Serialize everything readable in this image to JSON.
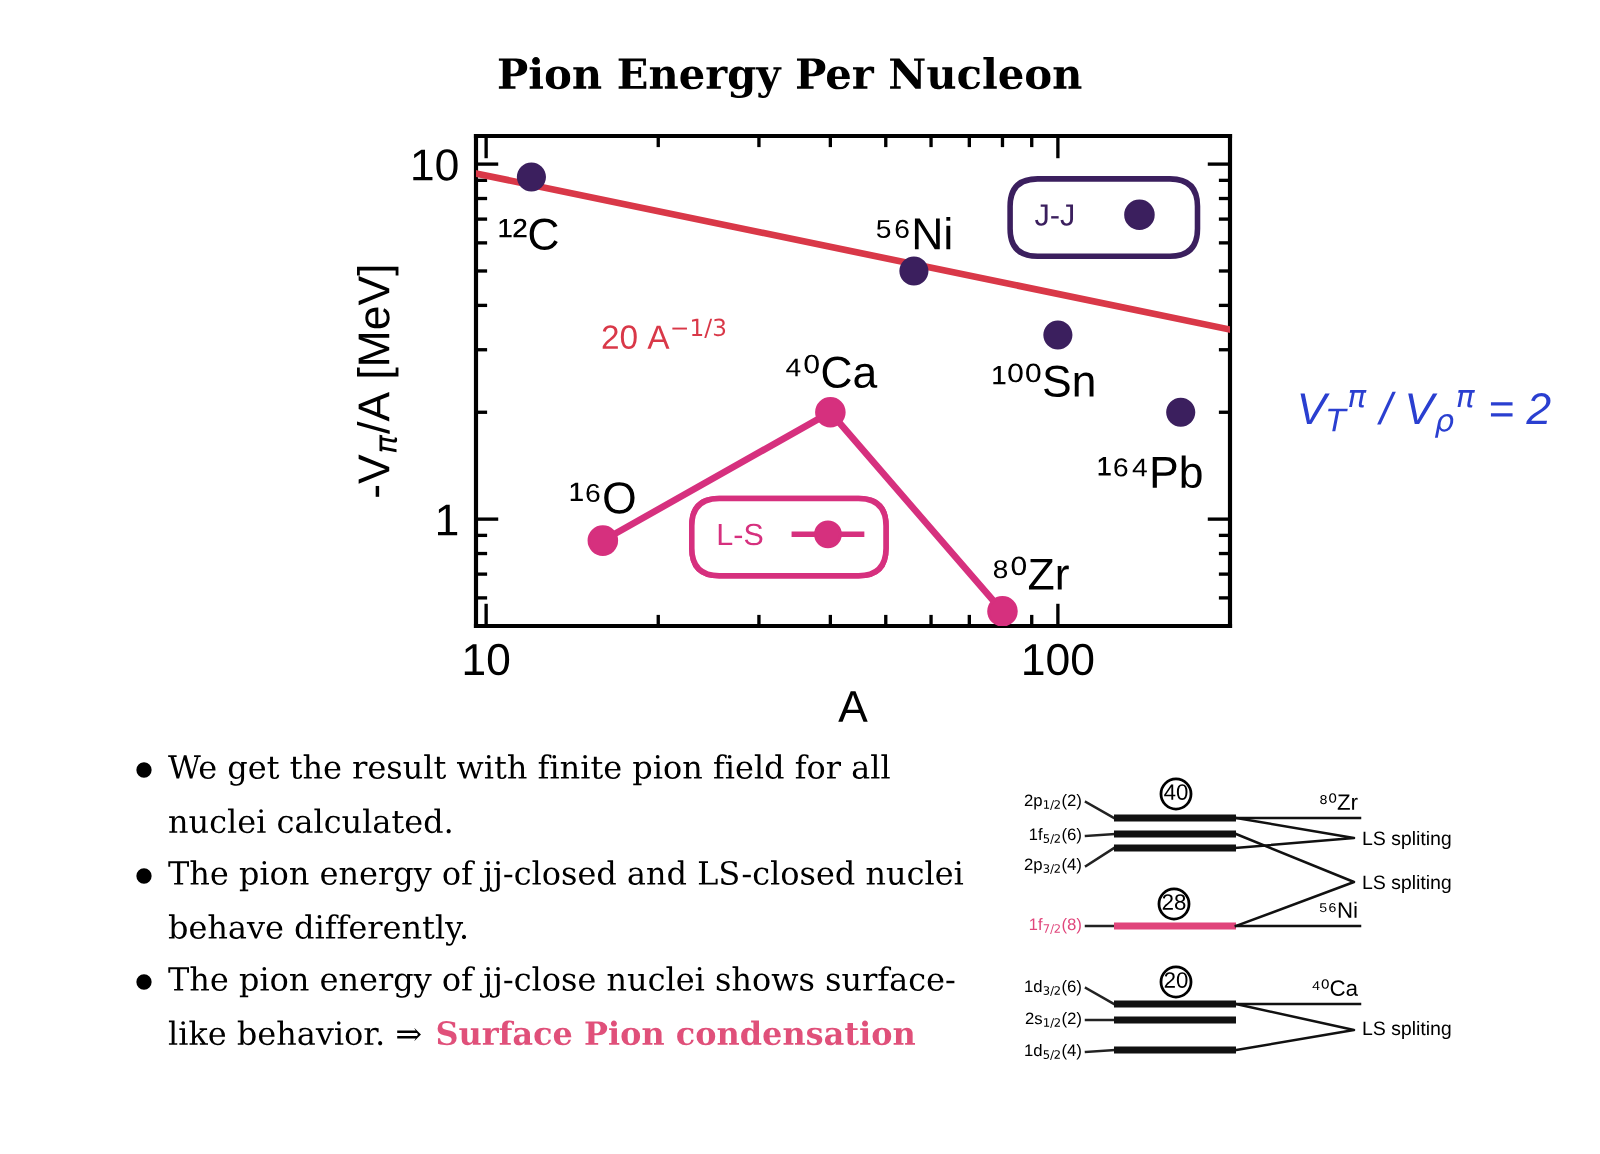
{
  "chart_data": [
    {
      "type": "scatter",
      "title": "Pion Energy Per Nucleon",
      "xlabel": "A",
      "ylabel": "-V$_{π}$/A [MeV]",
      "log": "xy",
      "xlim": [
        9.6,
        200
      ],
      "ylim": [
        0.5,
        12
      ],
      "xticks": [
        10,
        100
      ],
      "yticks": [
        1,
        10
      ],
      "legend": "top right",
      "marker": "circle",
      "series": [
        {
          "name": "J-J",
          "color": "#3b1f5e",
          "x": [
            12,
            56,
            100,
            164
          ],
          "values": [
            9.2,
            5.0,
            3.3,
            2.0
          ]
        },
        {
          "name": "L-S",
          "type": "line",
          "color": "#d6307e",
          "x": [
            16,
            40,
            80
          ],
          "values": [
            0.87,
            2.0,
            0.55
          ]
        },
        {
          "name": "20 A$^{−1/3}$",
          "type": "line",
          "color": "#d93848",
          "marker": "none",
          "x": [
            9.6,
            200
          ],
          "values": [
            9.41,
            3.42
          ]
        }
      ],
      "annotations": [
        {
          "text": "¹²C",
          "x": 12,
          "y": 9.2
        },
        {
          "text": "⁵⁶Ni",
          "x": 56,
          "y": 5.0
        },
        {
          "text": "¹⁰⁰Sn",
          "x": 100,
          "y": 3.3
        },
        {
          "text": "¹⁶⁴Pb",
          "x": 164,
          "y": 2.0
        },
        {
          "text": "¹⁶O",
          "x": 16,
          "y": 0.87
        },
        {
          "text": "⁴⁰Ca",
          "x": 40,
          "y": 2.0
        },
        {
          "text": "⁸⁰Zr",
          "x": 80,
          "y": 0.55
        },
        "V$_{T}$$^{π}$ / V$_{ρ}$$^{π}$ = 2"
      ]
    },
    {
      "type": "other",
      "annotations": [
        "We get the result with finite pion field for all\nnuclei calculated.",
        "The pion energy of jj-closed and LS-closed nuclei\nbehave differently.",
        "The pion energy of jj-close nuclei shows surface-\nlike behavior. ⇒ Surface Pion condensation"
      ]
    },
    {
      "type": "other",
      "annotations": [
        "2p$_{1/2}$(2)",
        "1f$_{5/2}$(6)",
        "2p$_{3/2}$(4)",
        "1f$_{7/2}$(8)",
        "1d$_{3/2}$(6)",
        "2s$_{1/2}$(2)",
        "1d$_{5/2}$(4)",
        "40",
        "28",
        "20",
        "⁸⁰Zr",
        "⁵⁶Ni",
        "⁴⁰Ca",
        "LS spliting",
        "LS spliting",
        "LS spliting"
      ]
    }
  ]
}
